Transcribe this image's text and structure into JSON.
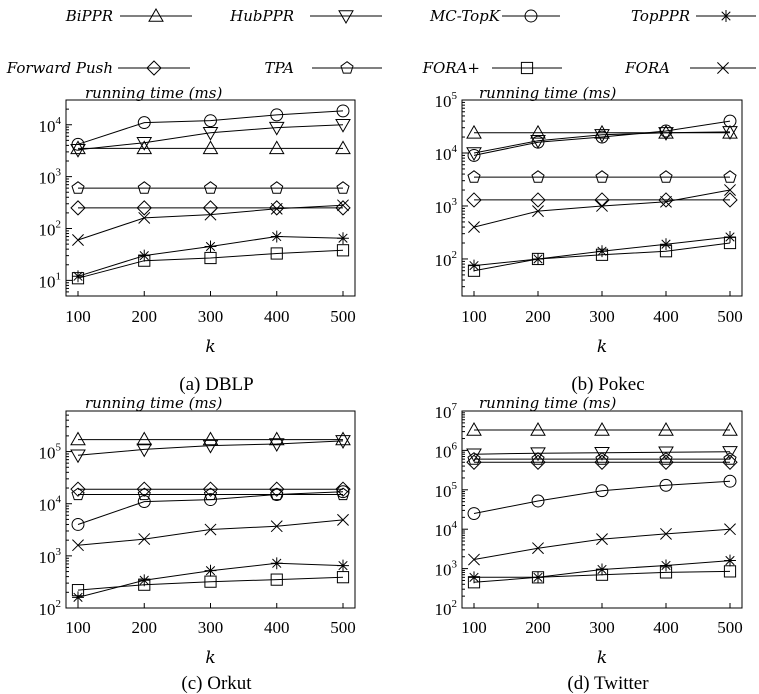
{
  "legend": [
    {
      "name": "BiPPR",
      "marker": "triangle-up"
    },
    {
      "name": "HubPPR",
      "marker": "triangle-down"
    },
    {
      "name": "MC-TopK",
      "marker": "circle"
    },
    {
      "name": "TopPPR",
      "marker": "asterisk"
    },
    {
      "name": "Forward Push",
      "marker": "diamond"
    },
    {
      "name": "TPA",
      "marker": "pentagon"
    },
    {
      "name": "FORA+",
      "marker": "square"
    },
    {
      "name": "FORA",
      "marker": "cross"
    }
  ],
  "chart_data": [
    {
      "type": "line",
      "caption": "(a) DBLP",
      "ylabel": "running time (ms)",
      "xlabel": "k",
      "x": [
        100,
        200,
        300,
        400,
        500
      ],
      "yscale": "log",
      "ylim": [
        5,
        30000
      ],
      "yticks": [
        1,
        2,
        3,
        4
      ],
      "series": [
        {
          "name": "BiPPR",
          "values": [
            3500,
            3500,
            3500,
            3500,
            3500
          ]
        },
        {
          "name": "HubPPR",
          "values": [
            3300,
            4500,
            7000,
            8800,
            10000
          ]
        },
        {
          "name": "MC-TopK",
          "values": [
            4200,
            11000,
            12000,
            15500,
            18500
          ]
        },
        {
          "name": "TopPPR",
          "values": [
            12,
            30,
            45,
            70,
            65
          ]
        },
        {
          "name": "Forward Push",
          "values": [
            250,
            250,
            250,
            250,
            250
          ]
        },
        {
          "name": "TPA",
          "values": [
            600,
            600,
            600,
            600,
            600
          ]
        },
        {
          "name": "FORA+",
          "values": [
            11,
            24,
            27,
            33,
            38
          ]
        },
        {
          "name": "FORA",
          "values": [
            60,
            160,
            185,
            240,
            280
          ]
        }
      ]
    },
    {
      "type": "line",
      "caption": "(b) Pokec",
      "ylabel": "running time (ms)",
      "xlabel": "k",
      "x": [
        100,
        200,
        300,
        400,
        500
      ],
      "yscale": "log",
      "ylim": [
        20,
        100000
      ],
      "yticks": [
        2,
        3,
        4,
        5
      ],
      "series": [
        {
          "name": "BiPPR",
          "values": [
            24000,
            24000,
            24000,
            24000,
            24000
          ]
        },
        {
          "name": "HubPPR",
          "values": [
            10000,
            17000,
            22000,
            24000,
            25000
          ]
        },
        {
          "name": "MC-TopK",
          "values": [
            9000,
            16000,
            20000,
            26000,
            40000
          ]
        },
        {
          "name": "TopPPR",
          "values": [
            75,
            100,
            140,
            190,
            260
          ]
        },
        {
          "name": "Forward Push",
          "values": [
            1300,
            1300,
            1300,
            1300,
            1300
          ]
        },
        {
          "name": "TPA",
          "values": [
            3500,
            3500,
            3500,
            3500,
            3500
          ]
        },
        {
          "name": "FORA+",
          "values": [
            60,
            100,
            120,
            140,
            200
          ]
        },
        {
          "name": "FORA",
          "values": [
            400,
            800,
            1000,
            1200,
            2000
          ]
        }
      ]
    },
    {
      "type": "line",
      "caption": "(c) Orkut",
      "ylabel": "running time (ms)",
      "xlabel": "k",
      "x": [
        100,
        200,
        300,
        400,
        500
      ],
      "yscale": "log",
      "ylim": [
        100,
        600000
      ],
      "yticks": [
        2,
        3,
        4,
        5
      ],
      "series": [
        {
          "name": "BiPPR",
          "values": [
            170000,
            170000,
            170000,
            170000,
            170000
          ]
        },
        {
          "name": "HubPPR",
          "values": [
            85000,
            110000,
            130000,
            140000,
            160000
          ]
        },
        {
          "name": "MC-TopK",
          "values": [
            4000,
            11000,
            12000,
            15000,
            17000
          ]
        },
        {
          "name": "TopPPR",
          "values": [
            160,
            340,
            520,
            720,
            650
          ]
        },
        {
          "name": "Forward Push",
          "values": [
            19000,
            19000,
            19000,
            19000,
            19000
          ]
        },
        {
          "name": "TPA",
          "values": [
            15000,
            15000,
            15000,
            15000,
            15000
          ]
        },
        {
          "name": "FORA+",
          "values": [
            220,
            280,
            320,
            350,
            390
          ]
        },
        {
          "name": "FORA",
          "values": [
            1600,
            2100,
            3200,
            3700,
            4900
          ]
        }
      ]
    },
    {
      "type": "line",
      "caption": "(d) Twitter",
      "ylabel": "running time (ms)",
      "xlabel": "k",
      "x": [
        100,
        200,
        300,
        400,
        500
      ],
      "yscale": "log",
      "ylim": [
        100,
        10000000
      ],
      "yticks": [
        2,
        3,
        4,
        5,
        6,
        7
      ],
      "series": [
        {
          "name": "BiPPR",
          "values": [
            3300000,
            3300000,
            3300000,
            3300000,
            3300000
          ]
        },
        {
          "name": "HubPPR",
          "values": [
            800000,
            850000,
            870000,
            900000,
            920000
          ]
        },
        {
          "name": "MC-TopK",
          "values": [
            25000,
            52000,
            95000,
            130000,
            165000
          ]
        },
        {
          "name": "TopPPR",
          "values": [
            600,
            600,
            950,
            1200,
            1600
          ]
        },
        {
          "name": "Forward Push",
          "values": [
            500000,
            500000,
            500000,
            500000,
            500000
          ]
        },
        {
          "name": "TPA",
          "values": [
            600000,
            600000,
            600000,
            600000,
            600000
          ]
        },
        {
          "name": "FORA+",
          "values": [
            450,
            600,
            700,
            800,
            850
          ]
        },
        {
          "name": "FORA",
          "values": [
            1700,
            3300,
            5600,
            7600,
            10000
          ]
        }
      ]
    }
  ]
}
